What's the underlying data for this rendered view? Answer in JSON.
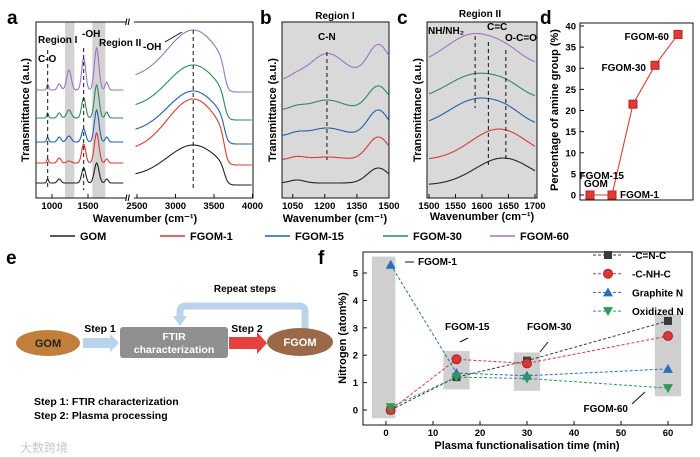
{
  "panel_labels": {
    "a": "a",
    "b": "b",
    "c": "c",
    "d": "d",
    "e": "e",
    "f": "f"
  },
  "legend": [
    {
      "name": "GOM",
      "color": "#222222"
    },
    {
      "name": "FGOM-1",
      "color": "#d63a32"
    },
    {
      "name": "FGOM-15",
      "color": "#2060a8"
    },
    {
      "name": "FGOM-30",
      "color": "#2e8a5a"
    },
    {
      "name": "FGOM-60",
      "color": "#9d72c4"
    }
  ],
  "chart_data": [
    {
      "panel": "a",
      "type": "line",
      "xlabel": "Wavenumber (cm⁻¹)",
      "ylabel": "Transmittance (a.u.)",
      "xticks": [
        "1000",
        "1500",
        "2500",
        "3000",
        "3500",
        "4000"
      ],
      "xlim_left": [
        780,
        2000
      ],
      "xlim_right": [
        2450,
        4000
      ],
      "series": [
        "GOM",
        "FGOM-1",
        "FGOM-15",
        "FGOM-30",
        "FGOM-60"
      ],
      "regions": [
        {
          "label": "Region I",
          "range": [
            1180,
            1310
          ]
        },
        {
          "label": "Region II",
          "range": [
            1560,
            1740
          ]
        }
      ],
      "annotations": [
        {
          "text": "C-O",
          "x": 940
        },
        {
          "text": "-OH",
          "x": 1440
        },
        {
          "text": "-OH",
          "x": 3230
        }
      ]
    },
    {
      "panel": "b",
      "type": "line",
      "title": "Region I",
      "xlabel": "Wavenumber (cm⁻¹)",
      "ylabel": "Transmittance (a.u.)",
      "xticks": [
        "1050",
        "1200",
        "1350",
        "1500"
      ],
      "xlim": [
        1000,
        1500
      ],
      "series": [
        "GOM",
        "FGOM-1",
        "FGOM-15",
        "FGOM-30",
        "FGOM-60"
      ],
      "annotations": [
        {
          "text": "C-N",
          "x": 1210
        }
      ]
    },
    {
      "panel": "c",
      "type": "line",
      "title": "Region II",
      "xlabel": "Wavenumber (cm⁻¹)",
      "ylabel": "Transmittance (a.u.)",
      "xticks": [
        "1500",
        "1550",
        "1600",
        "1650",
        "1700"
      ],
      "xlim": [
        1500,
        1700
      ],
      "series": [
        "GOM",
        "FGOM-1",
        "FGOM-15",
        "FGOM-30",
        "FGOM-60"
      ],
      "annotations": [
        {
          "text": "NH/NH₂",
          "x": 1587
        },
        {
          "text": "C=C",
          "x": 1612
        },
        {
          "text": "O-C=O",
          "x": 1645
        }
      ]
    },
    {
      "panel": "d",
      "type": "line",
      "ylabel": "Percentage of amine group (%)",
      "categories": [
        "GOM",
        "FGOM-1",
        "FGOM-15",
        "FGOM-30",
        "FGOM-60"
      ],
      "values": [
        0,
        0,
        21.5,
        30.7,
        38
      ],
      "ylim": [
        0,
        40
      ],
      "yticks": [
        "0",
        "5",
        "10",
        "15",
        "20",
        "25",
        "30",
        "35",
        "40"
      ],
      "color": "#e03a35"
    },
    {
      "panel": "f",
      "type": "scatter",
      "xlabel": "Plasma functionalisation time (min)",
      "ylabel": "Nitrogen (atom%)",
      "xlim": [
        -3,
        63
      ],
      "ylim": [
        -0.6,
        5.8
      ],
      "xticks": [
        "0",
        "10",
        "20",
        "30",
        "40",
        "50",
        "60"
      ],
      "yticks": [
        "0",
        "1",
        "2",
        "3",
        "4",
        "5"
      ],
      "x": [
        1,
        15,
        30,
        60
      ],
      "series": [
        {
          "name": "-C=N-C",
          "marker": "square",
          "color": "#3b3b3b",
          "values": [
            0,
            1.2,
            1.8,
            3.25
          ]
        },
        {
          "name": "-C-NH-C",
          "marker": "circle",
          "color": "#d9373a",
          "values": [
            0,
            1.85,
            1.7,
            2.7
          ]
        },
        {
          "name": "Graphite N",
          "marker": "triangle-up",
          "color": "#2a6fba",
          "values": [
            5.3,
            1.35,
            1.25,
            1.5
          ]
        },
        {
          "name": "Oxidized N",
          "marker": "triangle-down",
          "color": "#2e9a5a",
          "values": [
            0.1,
            1.2,
            1.15,
            0.8
          ]
        }
      ],
      "highlight_groups": [
        {
          "label": "FGOM-1",
          "x": 1,
          "range": [
            -0.3,
            5.6
          ]
        },
        {
          "label": "FGOM-15",
          "x": 15,
          "range": [
            0.75,
            2.15
          ]
        },
        {
          "label": "FGOM-30",
          "x": 30,
          "range": [
            0.7,
            2.1
          ]
        },
        {
          "label": "FGOM-60",
          "x": 60,
          "range": [
            0.5,
            3.5
          ]
        }
      ]
    }
  ],
  "diagram": {
    "start": "GOM",
    "box_line1": "FTIR",
    "box_line2": "characterization",
    "end": "FGOM",
    "step1": "Step 1",
    "step2": "Step 2",
    "repeat": "Repeat steps",
    "notes": [
      "Step 1: FTIR characterization",
      "Step 2: Plasma processing"
    ]
  },
  "watermark": "大数跨境"
}
